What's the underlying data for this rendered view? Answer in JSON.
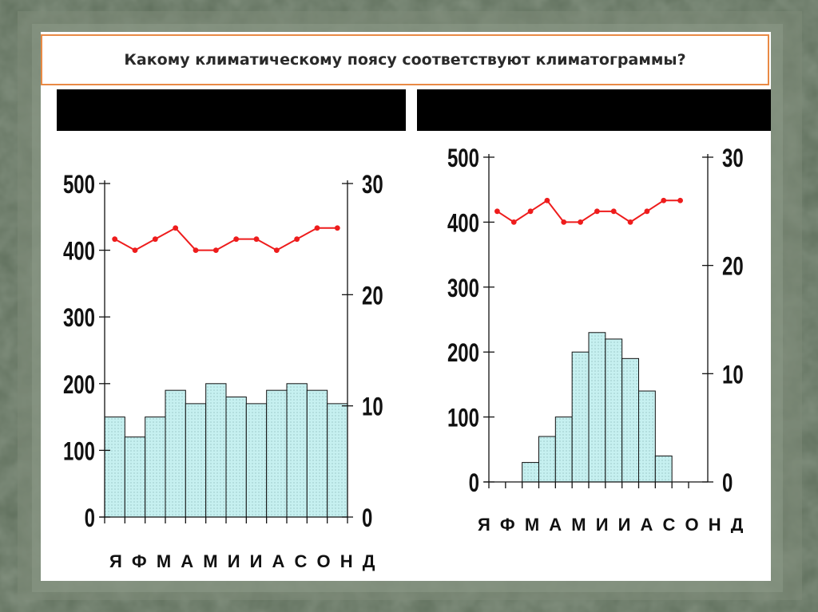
{
  "slide": {
    "title": "Какому климатическому поясу соответствуют климатограммы?"
  },
  "colors": {
    "background": "#5d6d5a",
    "bar_fill": "#c6f0f0",
    "temperature_line": "#ee1c1c",
    "title_border": "#e98a45"
  },
  "chart_data": [
    {
      "type": "bar",
      "categories": [
        "Я",
        "Ф",
        "М",
        "А",
        "М",
        "И",
        "И",
        "А",
        "С",
        "О",
        "Н",
        "Д"
      ],
      "series": [
        {
          "values": [
            150,
            120,
            150,
            190,
            170,
            200,
            180,
            170,
            190,
            200,
            190,
            170
          ],
          "axis": "left"
        },
        {
          "type": "line",
          "values": [
            25,
            24,
            25,
            26,
            24,
            24,
            25,
            25,
            24,
            25,
            26,
            26
          ],
          "axis": "right"
        }
      ],
      "y_ticks": [
        "500",
        "400",
        "300",
        "200",
        "100",
        "0"
      ],
      "y2_ticks": [
        "30",
        "20",
        "10",
        "0"
      ],
      "ylim": [
        0,
        500
      ],
      "y2lim": [
        0,
        30
      ],
      "month_label": "Я Ф М А М И И А С О Н Д"
    },
    {
      "type": "bar",
      "categories": [
        "Я",
        "Ф",
        "М",
        "А",
        "М",
        "И",
        "И",
        "А",
        "С",
        "О",
        "Н",
        "Д"
      ],
      "series": [
        {
          "values": [
            0,
            0,
            30,
            70,
            100,
            200,
            230,
            220,
            190,
            140,
            40,
            0
          ],
          "axis": "left"
        },
        {
          "type": "line",
          "values": [
            25,
            24,
            25,
            26,
            24,
            24,
            25,
            25,
            24,
            25,
            26,
            26
          ],
          "axis": "right"
        }
      ],
      "y_ticks": [
        "500",
        "400",
        "300",
        "200",
        "100",
        "0"
      ],
      "y2_ticks": [
        "30",
        "20",
        "10",
        "0"
      ],
      "ylim": [
        0,
        500
      ],
      "y2lim": [
        0,
        30
      ],
      "month_label": "Я Ф М А М И И А С О Н Д"
    }
  ]
}
